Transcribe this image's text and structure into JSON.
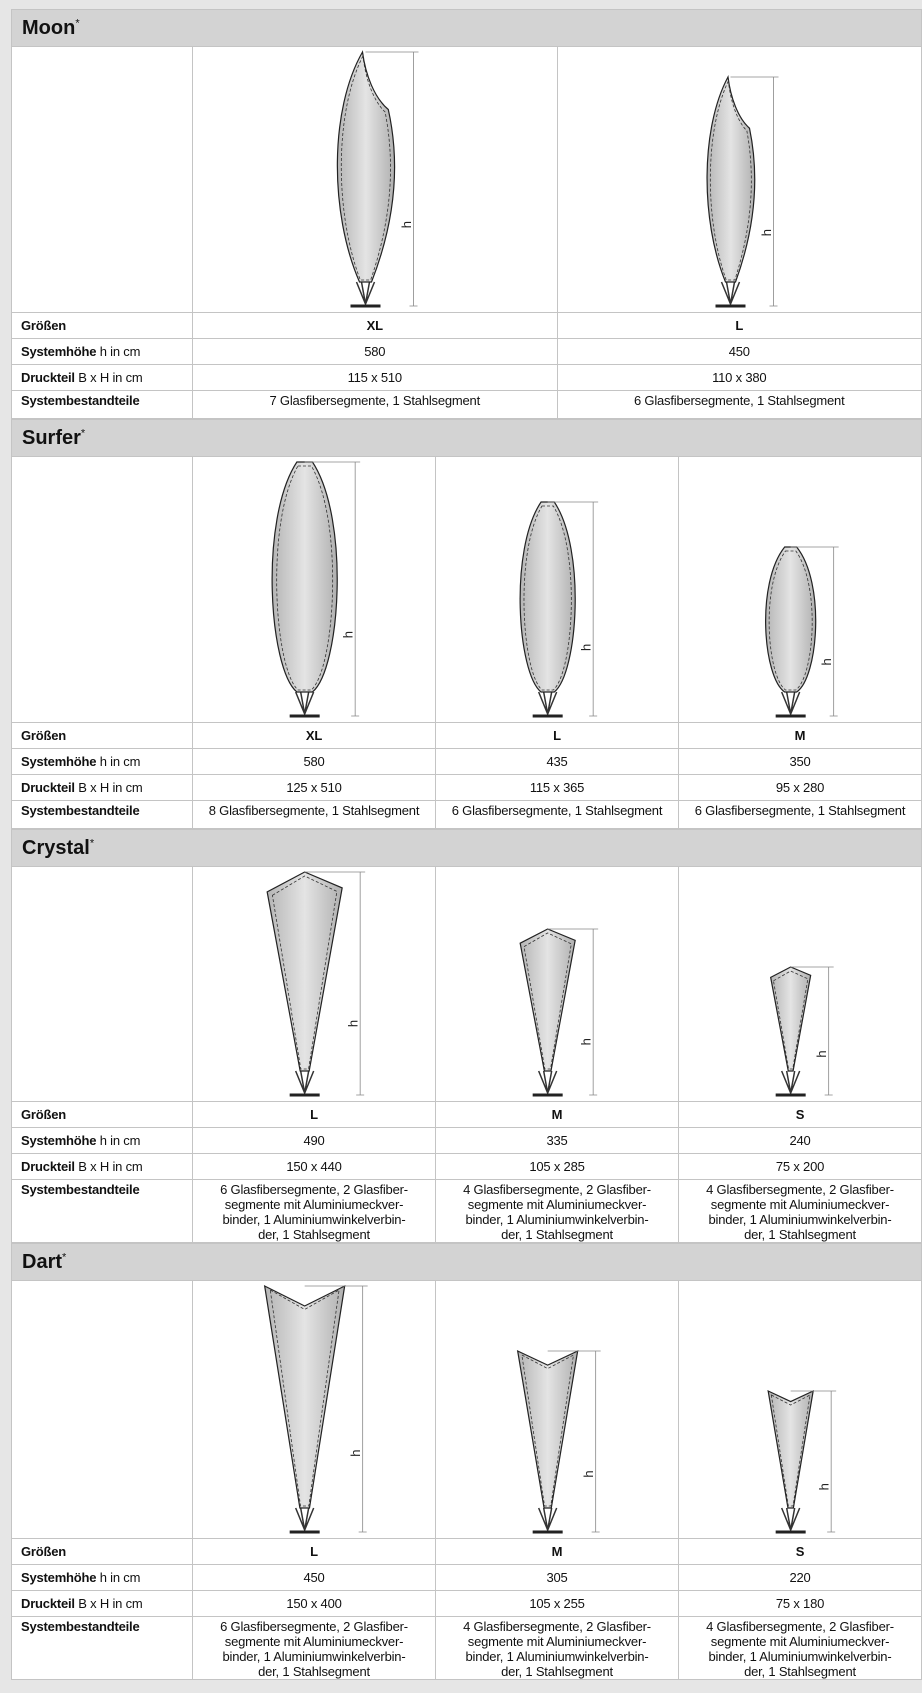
{
  "sections": [
    {
      "title": "Moon",
      "title_note": "*",
      "dimension_label": "h",
      "sizes": {
        "label": "Größen",
        "values": [
          "XL",
          "L"
        ]
      },
      "height": {
        "label": "Systemhöhe",
        "unit": "h in cm",
        "values": [
          580,
          450
        ]
      },
      "print": {
        "label": "Druckteil",
        "unit": "B x H in cm",
        "values": [
          "115 x 510",
          "110 x 380"
        ]
      },
      "parts": {
        "label": "Systembestandteile",
        "values": [
          [
            "7 Glasfibersegmente, 1 Stahlsegment"
          ],
          [
            "6 Glasfibersegmente, 1 Stahlsegment"
          ]
        ]
      }
    },
    {
      "title": "Surfer",
      "title_note": "*",
      "dimension_label": "h",
      "sizes": {
        "label": "Größen",
        "values": [
          "XL",
          "L",
          "M"
        ]
      },
      "height": {
        "label": "Systemhöhe",
        "unit": "h in cm",
        "values": [
          580,
          435,
          350
        ]
      },
      "print": {
        "label": "Druckteil",
        "unit": "B x H in cm",
        "values": [
          "125 x 510",
          "115 x 365",
          "95 x 280"
        ]
      },
      "parts": {
        "label": "Systembestandteile",
        "values": [
          [
            "8 Glasfibersegmente, 1 Stahlsegment"
          ],
          [
            "6 Glasfibersegmente, 1 Stahlsegment"
          ],
          [
            "6 Glasfibersegmente, 1 Stahlsegment"
          ]
        ]
      }
    },
    {
      "title": "Crystal",
      "title_note": "*",
      "dimension_label": "h",
      "sizes": {
        "label": "Größen",
        "values": [
          "L",
          "M",
          "S"
        ]
      },
      "height": {
        "label": "Systemhöhe",
        "unit": "h in cm",
        "values": [
          490,
          335,
          240
        ]
      },
      "print": {
        "label": "Druckteil",
        "unit": "B x H in cm",
        "values": [
          "150 x 440",
          "105 x 285",
          "75 x 200"
        ]
      },
      "parts": {
        "label": "Systembestandteile",
        "values": [
          [
            "6 Glasfibersegmente, 2 Glasfiber-",
            "segmente mit Aluminiumeckver-",
            "binder, 1 Aluminiumwinkelverbin-",
            "der, 1 Stahlsegment"
          ],
          [
            "4 Glasfibersegmente, 2 Glasfiber-",
            "segmente mit Aluminiumeckver-",
            "binder, 1 Aluminiumwinkelverbin-",
            "der, 1 Stahlsegment"
          ],
          [
            "4 Glasfibersegmente, 2 Glasfiber-",
            "segmente mit Aluminiumeckver-",
            "binder, 1 Aluminiumwinkelverbin-",
            "der, 1 Stahlsegment"
          ]
        ]
      }
    },
    {
      "title": "Dart",
      "title_note": "*",
      "dimension_label": "h",
      "sizes": {
        "label": "Größen",
        "values": [
          "L",
          "M",
          "S"
        ]
      },
      "height": {
        "label": "Systemhöhe",
        "unit": "h in cm",
        "values": [
          450,
          305,
          220
        ]
      },
      "print": {
        "label": "Druckteil",
        "unit": "B x H in cm",
        "values": [
          "150 x 400",
          "105 x 255",
          "75 x 180"
        ]
      },
      "parts": {
        "label": "Systembestandteile",
        "values": [
          [
            "6 Glasfibersegmente, 2 Glasfiber-",
            "segmente mit Aluminiumeckver-",
            "binder, 1 Aluminiumwinkelverbin-",
            "der, 1 Stahlsegment"
          ],
          [
            "4 Glasfibersegmente, 2 Glasfiber-",
            "segmente mit Aluminiumeckver-",
            "binder, 1 Aluminiumwinkelverbin-",
            "der, 1 Stahlsegment"
          ],
          [
            "4 Glasfibersegmente, 2 Glasfiber-",
            "segmente mit Aluminiumeckver-",
            "binder, 1 Aluminiumwinkelverbin-",
            "der, 1 Stahlsegment"
          ]
        ]
      }
    }
  ]
}
